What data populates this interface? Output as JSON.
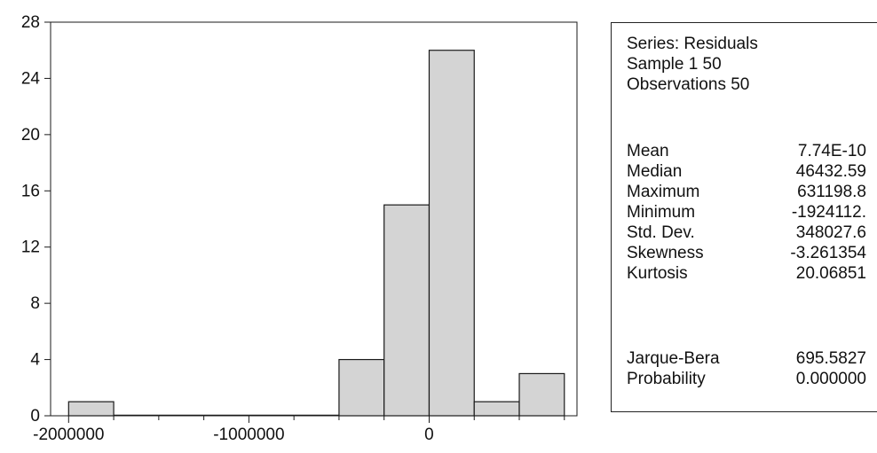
{
  "chart_data": {
    "type": "bar",
    "bins": [
      {
        "x0": -2000000,
        "x1": -1750000,
        "count": 1
      },
      {
        "x0": -1750000,
        "x1": -1500000,
        "count": 0
      },
      {
        "x0": -1500000,
        "x1": -1250000,
        "count": 0
      },
      {
        "x0": -1250000,
        "x1": -1000000,
        "count": 0
      },
      {
        "x0": -1000000,
        "x1": -750000,
        "count": 0
      },
      {
        "x0": -750000,
        "x1": -500000,
        "count": 0
      },
      {
        "x0": -500000,
        "x1": -250000,
        "count": 4
      },
      {
        "x0": -250000,
        "x1": 0,
        "count": 15
      },
      {
        "x0": 0,
        "x1": 250000,
        "count": 26
      },
      {
        "x0": 250000,
        "x1": 500000,
        "count": 1
      },
      {
        "x0": 500000,
        "x1": 750000,
        "count": 3
      }
    ],
    "xlim": [
      -2100000,
      820000
    ],
    "ylim": [
      0,
      28
    ],
    "x_ticks": [
      {
        "value": -2000000,
        "label": "-2000000"
      },
      {
        "value": -1000000,
        "label": "-1000000"
      },
      {
        "value": 0,
        "label": "0"
      }
    ],
    "x_minor_step": 250000,
    "y_ticks": [
      {
        "value": 0,
        "label": "0"
      },
      {
        "value": 4,
        "label": "4"
      },
      {
        "value": 8,
        "label": "8"
      },
      {
        "value": 12,
        "label": "12"
      },
      {
        "value": 16,
        "label": "16"
      },
      {
        "value": 20,
        "label": "20"
      },
      {
        "value": 24,
        "label": "24"
      },
      {
        "value": 28,
        "label": "28"
      }
    ],
    "bar_fill": "#d4d4d4",
    "bar_stroke": "#1a1a1a",
    "grid": false
  },
  "stats": {
    "header": [
      "Series: Residuals",
      "Sample 1 50",
      "Observations 50"
    ],
    "rows": [
      {
        "label": "Mean",
        "value": "7.74E-10"
      },
      {
        "label": "Median",
        "value": "46432.59"
      },
      {
        "label": "Maximum",
        "value": "631198.8"
      },
      {
        "label": "Minimum",
        "value": "-1924112."
      },
      {
        "label": "Std. Dev.",
        "value": "348027.6"
      },
      {
        "label": "Skewness",
        "value": "-3.261354"
      },
      {
        "label": "Kurtosis",
        "value": "20.06851"
      }
    ],
    "rows2": [
      {
        "label": "Jarque-Bera",
        "value": "695.5827"
      },
      {
        "label": "Probability",
        "value": "0.000000"
      }
    ]
  }
}
